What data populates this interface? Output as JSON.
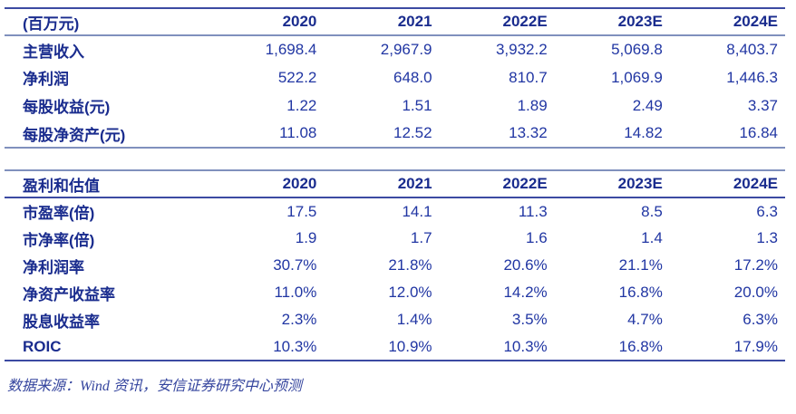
{
  "colors": {
    "text_label": "#1a2c8e",
    "text_number": "#2136a3",
    "rule_dark": "#3c4aa2",
    "rule_light": "#8090bd",
    "footer_text": "#35459e",
    "background": "#ffffff"
  },
  "table1": {
    "header": [
      "(百万元)",
      "2020",
      "2021",
      "2022E",
      "2023E",
      "2024E"
    ],
    "rows": [
      {
        "label": "主营收入",
        "values": [
          "1,698.4",
          "2,967.9",
          "3,932.2",
          "5,069.8",
          "8,403.7"
        ]
      },
      {
        "label": "净利润",
        "values": [
          "522.2",
          "648.0",
          "810.7",
          "1,069.9",
          "1,446.3"
        ]
      },
      {
        "label": "每股收益(元)",
        "values": [
          "1.22",
          "1.51",
          "1.89",
          "2.49",
          "3.37"
        ]
      },
      {
        "label": "每股净资产(元)",
        "values": [
          "11.08",
          "12.52",
          "13.32",
          "14.82",
          "16.84"
        ]
      }
    ]
  },
  "table2": {
    "header": [
      "盈利和估值",
      "2020",
      "2021",
      "2022E",
      "2023E",
      "2024E"
    ],
    "rows": [
      {
        "label": "市盈率(倍)",
        "values": [
          "17.5",
          "14.1",
          "11.3",
          "8.5",
          "6.3"
        ]
      },
      {
        "label": "市净率(倍)",
        "values": [
          "1.9",
          "1.7",
          "1.6",
          "1.4",
          "1.3"
        ]
      },
      {
        "label": "净利润率",
        "values": [
          "30.7%",
          "21.8%",
          "20.6%",
          "21.1%",
          "17.2%"
        ]
      },
      {
        "label": "净资产收益率",
        "values": [
          "11.0%",
          "12.0%",
          "14.2%",
          "16.8%",
          "20.0%"
        ]
      },
      {
        "label": "股息收益率",
        "values": [
          "2.3%",
          "1.4%",
          "3.5%",
          "4.7%",
          "6.3%"
        ]
      },
      {
        "label": "ROIC",
        "values": [
          "10.3%",
          "10.9%",
          "10.3%",
          "16.8%",
          "17.9%"
        ]
      }
    ]
  },
  "footer": {
    "source_note": "数据来源：Wind 资讯，安信证券研究中心预测"
  }
}
